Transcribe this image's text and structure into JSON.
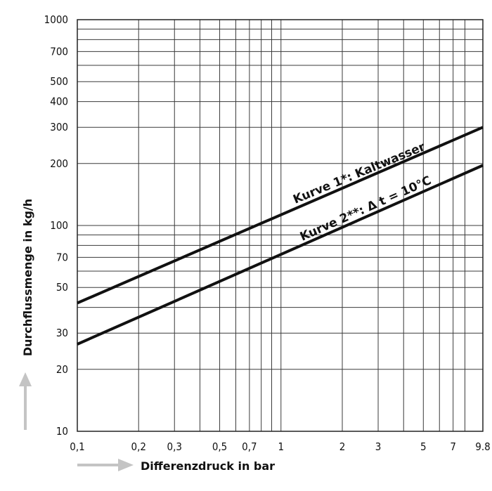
{
  "chart_data": {
    "type": "line",
    "x_scale": "log",
    "y_scale": "log",
    "xlim": [
      0.1,
      9.8
    ],
    "ylim": [
      10,
      1000
    ],
    "xlabel": "Differenzdruck in bar",
    "ylabel": "Durchflussmenge in kg/h",
    "x_ticks": [
      {
        "value": 0.1,
        "label": "0,1"
      },
      {
        "value": 0.2,
        "label": "0,2"
      },
      {
        "value": 0.3,
        "label": "0,3"
      },
      {
        "value": 0.5,
        "label": "0,5"
      },
      {
        "value": 0.7,
        "label": "0,7"
      },
      {
        "value": 1,
        "label": "1"
      },
      {
        "value": 2,
        "label": "2"
      },
      {
        "value": 3,
        "label": "3"
      },
      {
        "value": 5,
        "label": "5"
      },
      {
        "value": 7,
        "label": "7"
      },
      {
        "value": 9.8,
        "label": "9.8"
      }
    ],
    "x_grid": [
      0.1,
      0.2,
      0.3,
      0.4,
      0.5,
      0.6,
      0.7,
      0.8,
      0.9,
      1,
      2,
      3,
      4,
      5,
      6,
      7,
      8,
      9.8
    ],
    "y_ticks": [
      {
        "value": 10,
        "label": "10"
      },
      {
        "value": 20,
        "label": "20"
      },
      {
        "value": 30,
        "label": "30"
      },
      {
        "value": 50,
        "label": "50"
      },
      {
        "value": 70,
        "label": "70"
      },
      {
        "value": 100,
        "label": "100"
      },
      {
        "value": 200,
        "label": "200"
      },
      {
        "value": 300,
        "label": "300"
      },
      {
        "value": 400,
        "label": "400"
      },
      {
        "value": 500,
        "label": "500"
      },
      {
        "value": 700,
        "label": "700"
      },
      {
        "value": 1000,
        "label": "1000"
      }
    ],
    "y_grid": [
      10,
      20,
      30,
      40,
      50,
      60,
      70,
      80,
      90,
      100,
      200,
      300,
      400,
      500,
      600,
      700,
      800,
      900,
      1000
    ],
    "grid": true,
    "series": [
      {
        "name": "Kurve 1*: Kaltwasser",
        "x": [
          0.1,
          9.8
        ],
        "y": [
          42,
          300
        ]
      },
      {
        "name": "Kurve 2**: Δ t = 10°C",
        "x": [
          0.1,
          9.8
        ],
        "y": [
          26.5,
          196
        ]
      }
    ],
    "colors": {
      "line": "#111111",
      "grid": "#3a3a3a",
      "arrow": "#c4c4c4"
    }
  }
}
